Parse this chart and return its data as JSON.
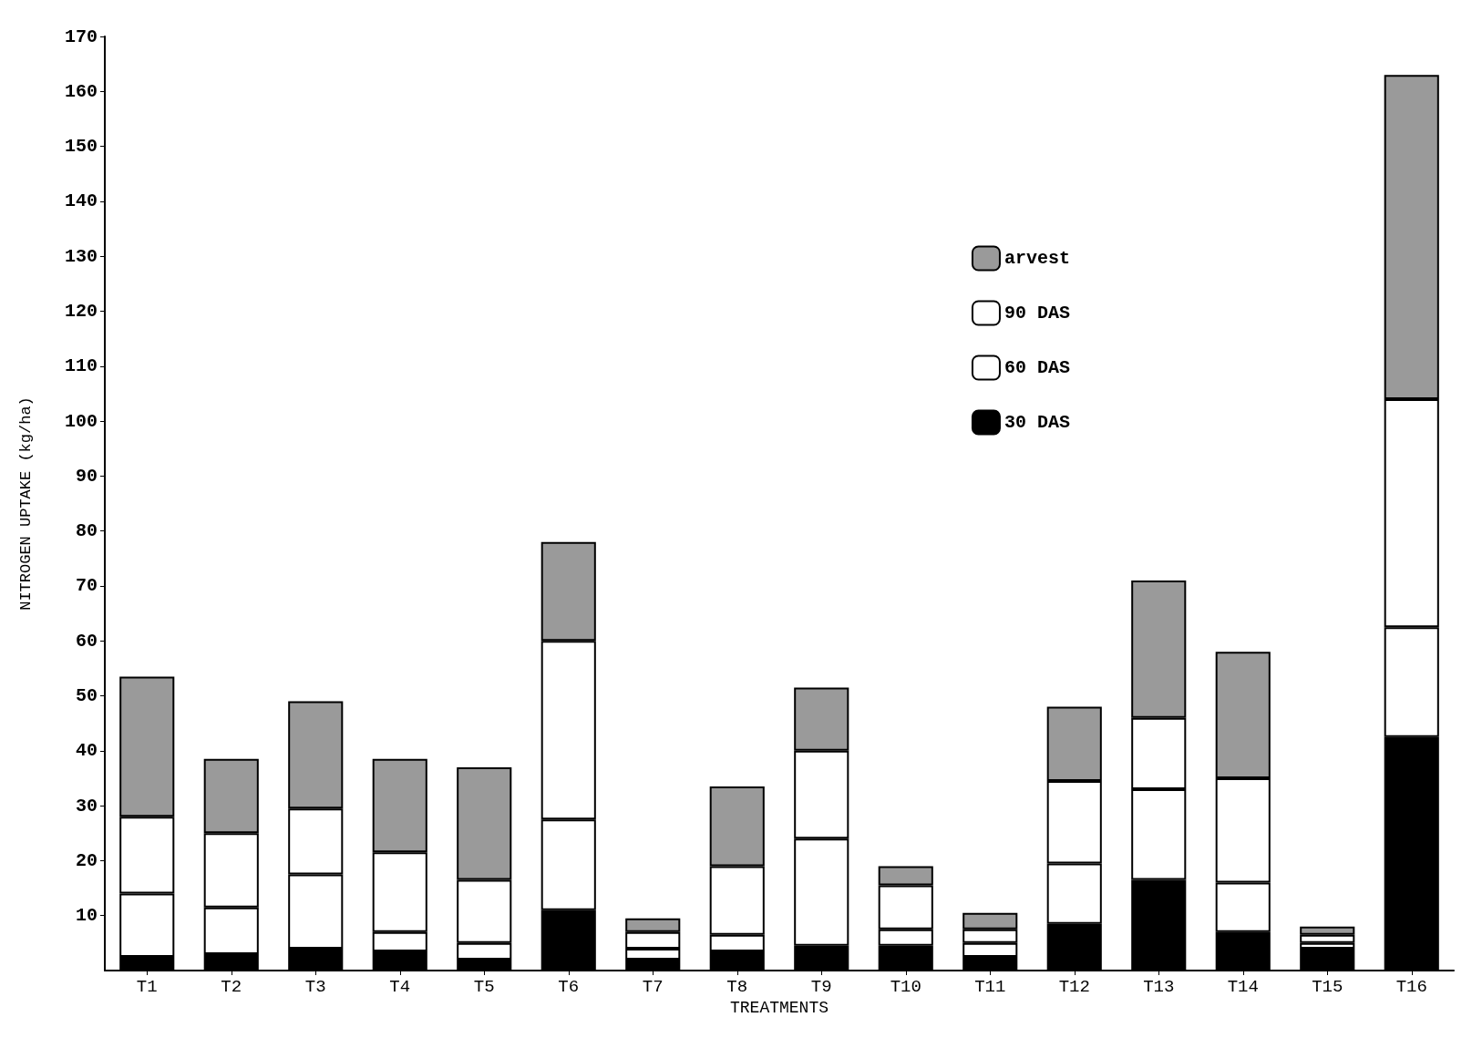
{
  "chart_data": {
    "type": "bar",
    "stacked": true,
    "xlabel": "TREATMENTS",
    "ylabel": "NITROGEN UPTAKE (kg/ha)",
    "categories": [
      "T1",
      "T2",
      "T3",
      "T4",
      "T5",
      "T6",
      "T7",
      "T8",
      "T9",
      "T10",
      "T11",
      "T12",
      "T13",
      "T14",
      "T15",
      "T16"
    ],
    "series": [
      {
        "name": "30 DAS",
        "color": "#000000",
        "values": [
          2.5,
          3,
          4,
          3.5,
          2,
          11,
          2,
          3.5,
          4.5,
          4.5,
          2.5,
          8.5,
          16.5,
          7,
          4,
          42.5
        ]
      },
      {
        "name": "60 DAS",
        "color": "#ffffff",
        "values": [
          11.5,
          8.5,
          13.5,
          3.5,
          3,
          16.5,
          2,
          3,
          19.5,
          3,
          2.5,
          11,
          16.5,
          9,
          1,
          20
        ]
      },
      {
        "name": "90 DAS",
        "color": "#ffffff",
        "values": [
          14,
          13.5,
          12,
          14.5,
          11.5,
          32.5,
          3,
          12.5,
          16,
          8,
          2.5,
          15,
          13,
          19,
          1.5,
          41.5
        ]
      },
      {
        "name": "arvest",
        "color": "#9a9a9a",
        "values": [
          25.5,
          13.5,
          19.5,
          17,
          20.5,
          18,
          2.5,
          14.5,
          11.5,
          3.5,
          3,
          13.5,
          25,
          23,
          1.5,
          59
        ]
      }
    ],
    "ylim": [
      0,
      170
    ],
    "yticks": [
      10,
      20,
      30,
      40,
      50,
      60,
      70,
      80,
      90,
      100,
      110,
      120,
      130,
      140,
      150,
      160,
      170
    ],
    "grid": false,
    "legend": "top right"
  }
}
